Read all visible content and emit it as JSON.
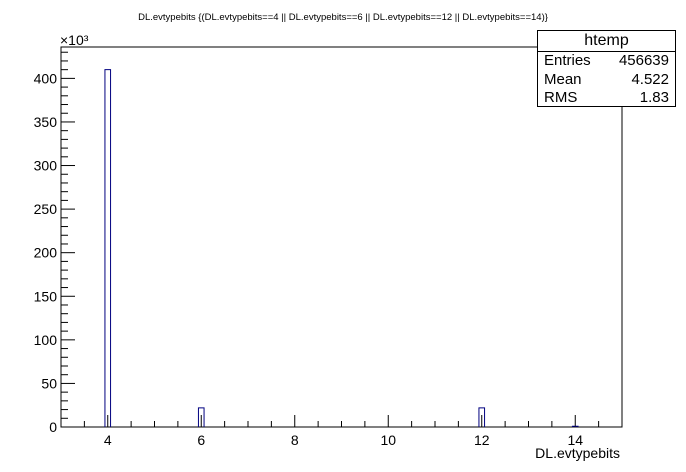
{
  "chart_data": {
    "type": "bar",
    "title": "DL.evtypebits {(DL.evtypebits==4 || DL.evtypebits==6 || DL.evtypebits==12 || DL.evtypebits==14)}",
    "xlabel": "DL.evtypebits",
    "ylabel": "",
    "y_multiplier": "×10³",
    "xlim": [
      3.0,
      15.0
    ],
    "ylim": [
      0,
      436
    ],
    "x_ticks": [
      4,
      6,
      8,
      10,
      12,
      14
    ],
    "y_ticks": [
      0,
      50,
      100,
      150,
      200,
      250,
      300,
      350,
      400
    ],
    "bin_width": 0.12,
    "bins": [
      {
        "x": 4,
        "value": 410
      },
      {
        "x": 6,
        "value": 22
      },
      {
        "x": 12,
        "value": 22
      },
      {
        "x": 14,
        "value": 0.8
      }
    ],
    "grid": false,
    "line_color": "#000080",
    "stats": {
      "name": "htemp",
      "rows": [
        {
          "label": "Entries",
          "value": "456639"
        },
        {
          "label": "Mean",
          "value": "4.522"
        },
        {
          "label": "RMS",
          "value": "1.83"
        }
      ]
    }
  }
}
